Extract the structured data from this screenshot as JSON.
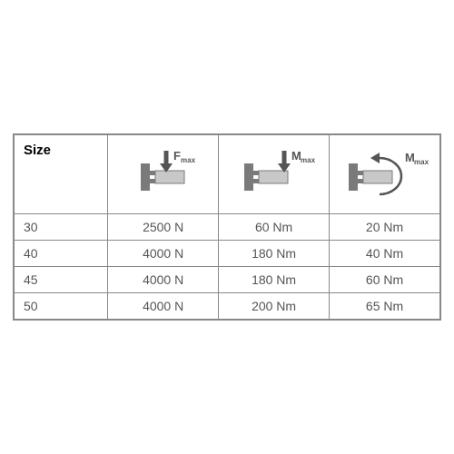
{
  "table": {
    "size_label": "Size",
    "col_widths": [
      "22%",
      "26%",
      "26%",
      "26%"
    ],
    "icon_labels": {
      "fmax_main": "F",
      "fmax_sub": "max",
      "mmax_main": "M",
      "mmax_sub": "max"
    },
    "colors": {
      "icon_fill": "#7a7a7a",
      "icon_light": "#c8c8c8",
      "icon_stroke": "#555",
      "text": "#555"
    },
    "rows": [
      {
        "size": "30",
        "fmax": "2500 N",
        "m1": "60 Nm",
        "m2": "20 Nm"
      },
      {
        "size": "40",
        "fmax": "4000 N",
        "m1": "180 Nm",
        "m2": "40 Nm"
      },
      {
        "size": "45",
        "fmax": "4000 N",
        "m1": "180 Nm",
        "m2": "60 Nm"
      },
      {
        "size": "50",
        "fmax": "4000 N",
        "m1": "200 Nm",
        "m2": "65 Nm"
      }
    ]
  }
}
